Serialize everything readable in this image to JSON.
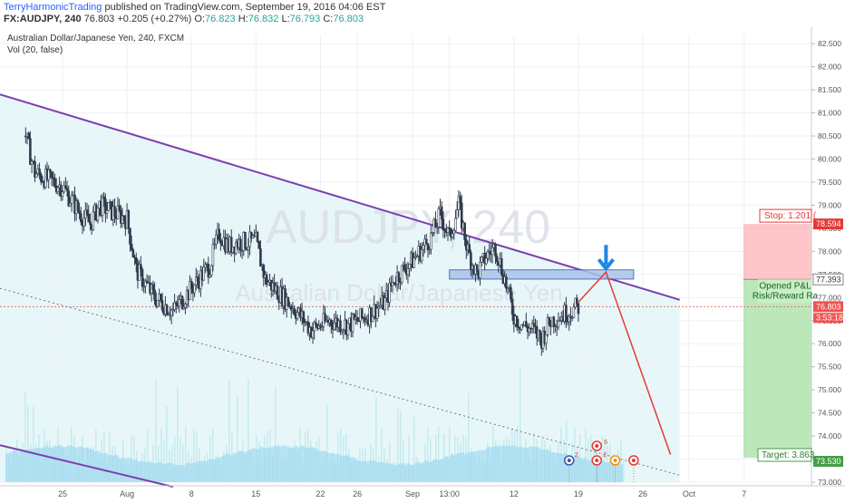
{
  "header": {
    "user": "TerryHarmonicTrading",
    "published": "published on TradingView.com, September 19, 2016 04:06 EST",
    "symbol": "FX:AUDJPY, 240",
    "last": "76.803",
    "change": "+0.205 (+0.27%)",
    "ohlc": [
      {
        "label": "O:",
        "value": "76.823"
      },
      {
        "label": "H:",
        "value": "76.832"
      },
      {
        "label": "L:",
        "value": "76.793"
      },
      {
        "label": "C:",
        "value": "76.803"
      }
    ]
  },
  "legend": {
    "title": "Australian Dollar/Japanese Yen, 240, FXCM",
    "vol": "Vol (20, false)"
  },
  "watermark": {
    "big": "AUDJPY, 240",
    "small": "Australian Dollar/Japanese Yen"
  },
  "colors": {
    "up": "#26a69a",
    "down": "#ef5350",
    "candle": "#2f3b4c",
    "channel": "#7b3fb0",
    "arrow_red": "#e53935",
    "zone": "#a9c4ea",
    "stop_box": "#ffb3b8",
    "target_box": "#a5e0a2",
    "arrow_blue": "#1e88e5"
  },
  "chart_data": {
    "type": "candlestick",
    "yrange": [
      73.0,
      82.7
    ],
    "y_ticks": [
      "82.500",
      "82.000",
      "81.500",
      "81.000",
      "80.500",
      "80.000",
      "79.500",
      "79.000",
      "78.500",
      "78.000",
      "77.500",
      "77.000",
      "76.500",
      "76.000",
      "75.500",
      "75.000",
      "74.500",
      "74.000",
      "73.500",
      "73.000"
    ],
    "x_ticks": [
      "25",
      "Aug",
      "8",
      "15",
      "22",
      "26",
      "Sep",
      "13:00",
      "12",
      "19",
      "26",
      "Oct",
      "7"
    ],
    "price_path": [
      {
        "t": "Jul 21",
        "p": 80.5
      },
      {
        "t": "Jul 22",
        "p": 79.7
      },
      {
        "t": "Jul 25",
        "p": 79.4
      },
      {
        "t": "Jul 27",
        "p": 78.8
      },
      {
        "t": "Jul 28",
        "p": 78.6
      },
      {
        "t": "Jul 29",
        "p": 79.0
      },
      {
        "t": "Aug 1",
        "p": 78.7
      },
      {
        "t": "Aug 2",
        "p": 77.6
      },
      {
        "t": "Aug 4",
        "p": 77.0
      },
      {
        "t": "Aug 6",
        "p": 76.7
      },
      {
        "t": "Aug 8",
        "p": 77.2
      },
      {
        "t": "Aug 10",
        "p": 77.7
      },
      {
        "t": "Aug 11",
        "p": 78.4
      },
      {
        "t": "Aug 12",
        "p": 78.1
      },
      {
        "t": "Aug 13",
        "p": 78.2
      },
      {
        "t": "Aug 15",
        "p": 78.2
      },
      {
        "t": "Aug 16",
        "p": 77.4
      },
      {
        "t": "Aug 17",
        "p": 77.2
      },
      {
        "t": "Aug 19",
        "p": 76.8
      },
      {
        "t": "Aug 21",
        "p": 76.3
      },
      {
        "t": "Aug 23",
        "p": 76.5
      },
      {
        "t": "Aug 25",
        "p": 76.4
      },
      {
        "t": "Aug 27",
        "p": 76.6
      },
      {
        "t": "Aug 29",
        "p": 76.9
      },
      {
        "t": "Aug 30",
        "p": 77.4
      },
      {
        "t": "Sep 1",
        "p": 77.8
      },
      {
        "t": "Sep 3",
        "p": 78.3
      },
      {
        "t": "Sep 4",
        "p": 78.8
      },
      {
        "t": "Sep 5",
        "p": 78.3
      },
      {
        "t": "Sep 6",
        "p": 79.0
      },
      {
        "t": "Sep 7",
        "p": 78.0
      },
      {
        "t": "Sep 8",
        "p": 77.5
      },
      {
        "t": "Sep 9",
        "p": 77.9
      },
      {
        "t": "Sep 10",
        "p": 78.1
      },
      {
        "t": "Sep 11",
        "p": 77.4
      },
      {
        "t": "Sep 12",
        "p": 76.6
      },
      {
        "t": "Sep 13",
        "p": 76.4
      },
      {
        "t": "Sep 14",
        "p": 76.3
      },
      {
        "t": "Sep 15",
        "p": 76.1
      },
      {
        "t": "Sep 16",
        "p": 76.5
      },
      {
        "t": "Sep 17",
        "p": 76.6
      },
      {
        "t": "Sep 19",
        "p": 76.8
      }
    ],
    "zone": {
      "from_t": "Sep 5",
      "to_t": "Sep 25",
      "low": 77.4,
      "high": 77.6
    },
    "projection": [
      {
        "t": "Sep 19",
        "p": 76.9
      },
      {
        "t": "Sep 22",
        "p": 77.55
      },
      {
        "t": "Sep 29",
        "p": 73.6
      }
    ],
    "channel_upper": [
      {
        "t": "Jul 19",
        "p": 81.4
      },
      {
        "t": "Sep 30",
        "p": 76.95
      }
    ],
    "channel_lower_dotted": [
      {
        "t": "Jul 19",
        "p": 77.2
      },
      {
        "t": "Sep 30",
        "p": 73.15
      }
    ],
    "channel_lower2": [
      {
        "t": "Jul 19",
        "p": 73.8
      },
      {
        "t": "Aug 6",
        "p": 72.9
      }
    ],
    "position": {
      "stop_text": "Stop: 1.201 (",
      "stop_price": "78.594",
      "entry_text_1": "Opened P&L",
      "entry_text_2": "Risk/Reward Ra",
      "entry_price": "77.393",
      "target_text": "Target: 3.863",
      "target_price": "73.530",
      "stop_level": 78.594,
      "entry_level": 77.393,
      "target_level": 73.53
    },
    "last_price_label": "76.803",
    "countdown_label": "3:53:18",
    "last_price": 76.803,
    "event_badges": [
      "6",
      "2",
      "2"
    ]
  }
}
